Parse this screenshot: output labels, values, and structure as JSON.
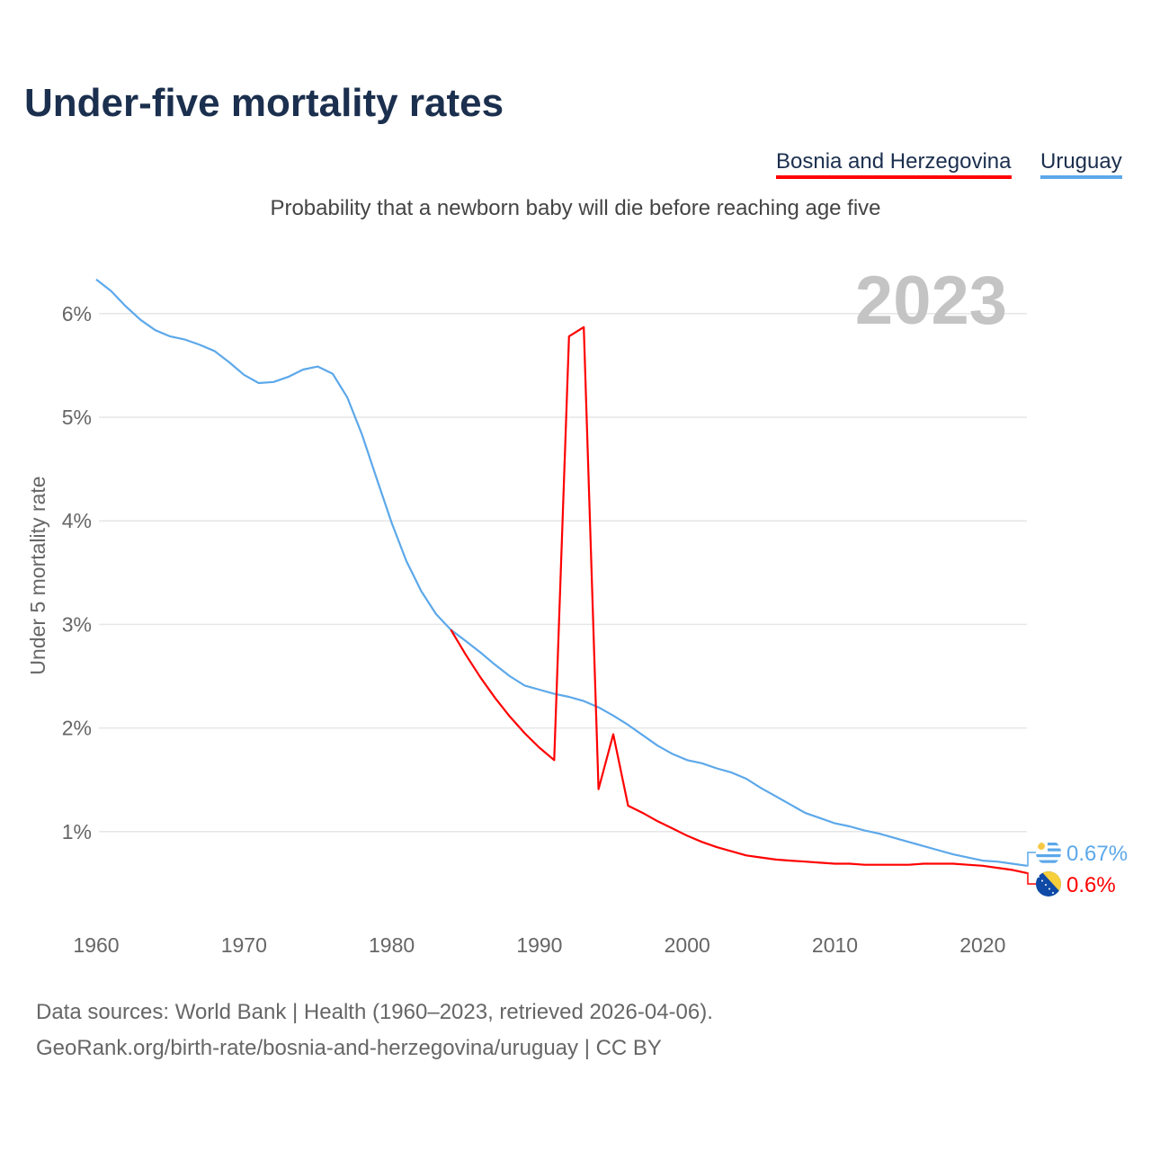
{
  "title": "Under-five mortality rates",
  "subtitle": "Probability that a newborn baby will die before reaching age five",
  "footer": {
    "line1": "Data sources: World Bank | Health (1960–2023, retrieved 2026-04-06).",
    "line2": "GeoRank.org/birth-rate/bosnia-and-herzegovina/uruguay | CC BY"
  },
  "chart_data": {
    "type": "line",
    "title": "Under-five mortality rates",
    "ylabel": "Under 5 mortality rate",
    "xlabel": "",
    "year_label": "2023",
    "xlim": [
      1960,
      2023
    ],
    "ylim": [
      0,
      6.3
    ],
    "x_ticks": [
      1960,
      1970,
      1980,
      1990,
      2000,
      2010,
      2020
    ],
    "x_tick_labels": [
      "1960",
      "1970",
      "1980",
      "1990",
      "2000",
      "2010",
      "2020"
    ],
    "y_ticks": [
      1,
      2,
      3,
      4,
      5,
      6
    ],
    "y_tick_labels": [
      "1%",
      "2%",
      "3%",
      "4%",
      "5%",
      "6%"
    ],
    "grid": true,
    "legend_placement": "top-right",
    "series": [
      {
        "name": "Bosnia and Herzegovina",
        "color": "#ff0000",
        "flag": "bosnia-flag",
        "end_label": "0.6%",
        "x_start": 1984,
        "values": [
          2.95,
          2.71,
          2.49,
          2.29,
          2.11,
          1.95,
          1.81,
          1.69,
          5.78,
          5.87,
          1.41,
          1.94,
          1.25,
          1.18,
          1.1,
          1.03,
          0.96,
          0.9,
          0.85,
          0.81,
          0.77,
          0.75,
          0.73,
          0.72,
          0.71,
          0.7,
          0.69,
          0.69,
          0.68,
          0.68,
          0.68,
          0.68,
          0.69,
          0.69,
          0.69,
          0.68,
          0.67,
          0.65,
          0.63,
          0.6
        ]
      },
      {
        "name": "Uruguay",
        "color": "#5ca8ea",
        "flag": "uruguay-flag",
        "end_label": "0.67%",
        "x_start": 1960,
        "values": [
          6.33,
          6.22,
          6.07,
          5.94,
          5.84,
          5.78,
          5.75,
          5.7,
          5.64,
          5.53,
          5.41,
          5.33,
          5.34,
          5.39,
          5.46,
          5.49,
          5.42,
          5.19,
          4.83,
          4.4,
          3.98,
          3.61,
          3.32,
          3.1,
          2.95,
          2.84,
          2.73,
          2.61,
          2.5,
          2.41,
          2.37,
          2.33,
          2.3,
          2.26,
          2.2,
          2.12,
          2.03,
          1.93,
          1.83,
          1.75,
          1.69,
          1.66,
          1.61,
          1.57,
          1.51,
          1.42,
          1.34,
          1.26,
          1.18,
          1.13,
          1.08,
          1.05,
          1.01,
          0.98,
          0.94,
          0.9,
          0.86,
          0.82,
          0.78,
          0.75,
          0.72,
          0.71,
          0.69,
          0.67
        ]
      }
    ]
  }
}
